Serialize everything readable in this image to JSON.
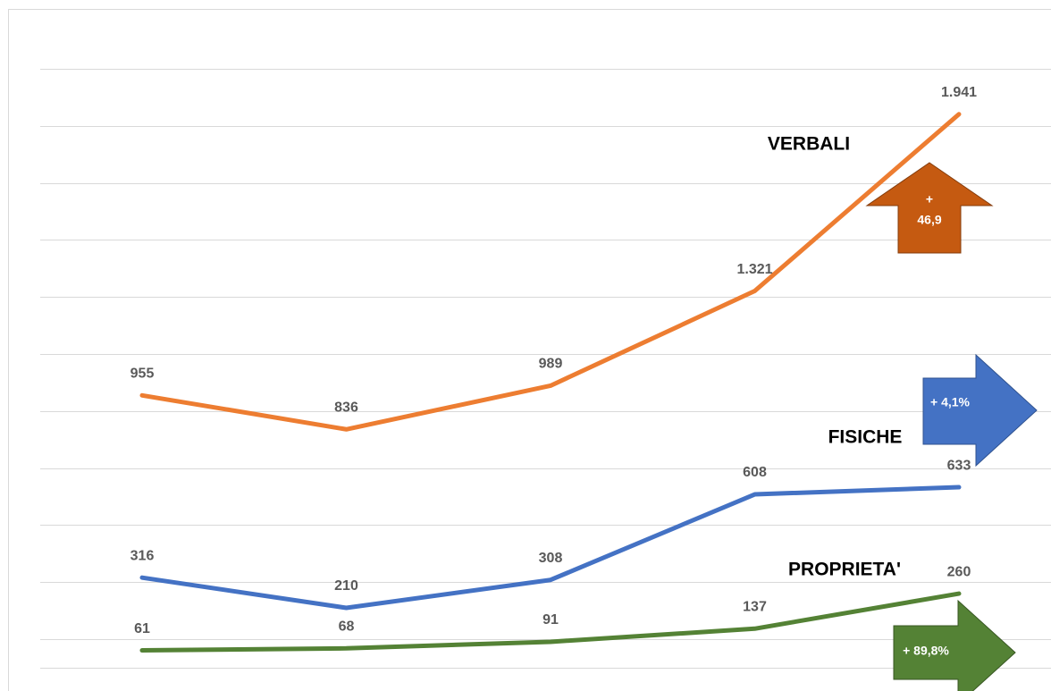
{
  "chart_data": {
    "type": "line",
    "categories": [
      null,
      null,
      null,
      null,
      null
    ],
    "series": [
      {
        "name": "VERBALI",
        "color": "#ED7D31",
        "values": [
          955,
          836,
          989,
          1321,
          1941
        ],
        "value_labels": [
          "955",
          "836",
          "989",
          "1.321",
          "1.941"
        ]
      },
      {
        "name": "FISICHE",
        "color": "#4472C4",
        "values": [
          316,
          210,
          308,
          608,
          633
        ],
        "value_labels": [
          "316",
          "210",
          "308",
          "608",
          "633"
        ]
      },
      {
        "name": "PROPRIETA'",
        "color": "#548235",
        "values": [
          61,
          68,
          91,
          137,
          260
        ],
        "value_labels": [
          "61",
          "68",
          "91",
          "137",
          "260"
        ]
      }
    ],
    "ylim": [
      0,
      2100
    ],
    "yticks": [
      0,
      100,
      300,
      500,
      700,
      900,
      1100,
      1300,
      1500,
      1700,
      1900,
      2100
    ],
    "grid": true,
    "arrows": [
      {
        "color": "#C55A11",
        "lines": [
          "+",
          "46,9"
        ]
      },
      {
        "color": "#4472C4",
        "lines": [
          "+ 4,1%"
        ]
      },
      {
        "color": "#548235",
        "lines": [
          "+ 89,8%"
        ]
      }
    ]
  }
}
